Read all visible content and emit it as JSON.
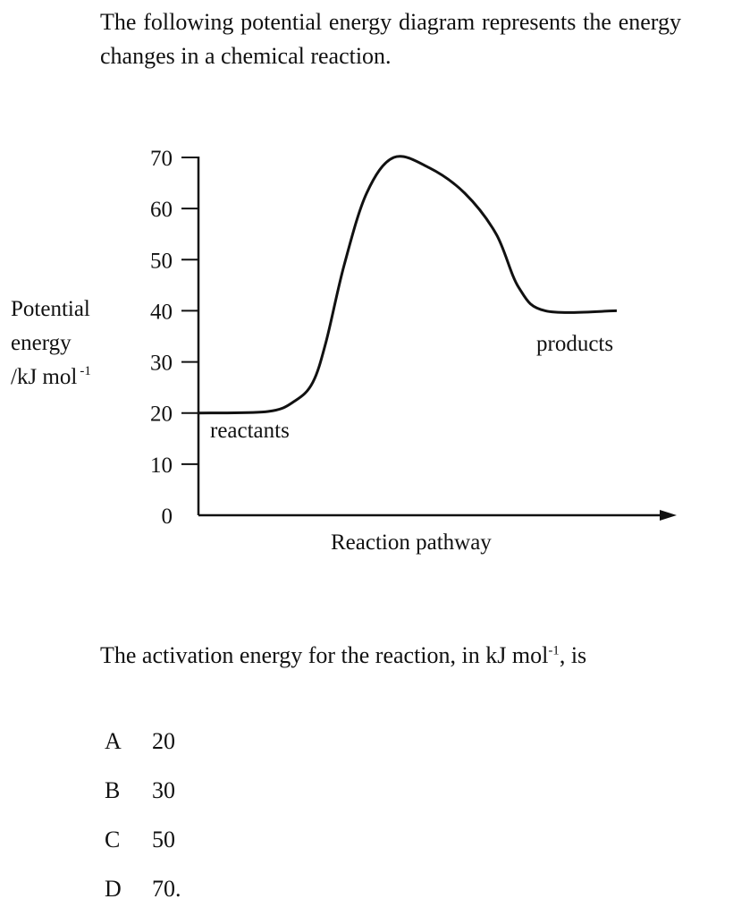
{
  "intro": "The following potential energy diagram represents the energy changes in a chemical reaction.",
  "chart_data": {
    "type": "line",
    "title": "",
    "xlabel": "Reaction pathway",
    "ylabel_lines": [
      "Potential",
      "energy",
      "/kJ mol"
    ],
    "ylabel_sup": "-1",
    "ylim": [
      0,
      70
    ],
    "yticks": [
      0,
      10,
      20,
      30,
      40,
      50,
      60,
      70
    ],
    "grid": false,
    "annotations": {
      "reactants": "reactants",
      "products": "products"
    },
    "reactants_energy": 20,
    "peak_energy": 70,
    "products_energy": 40,
    "series": [
      {
        "x": [
          0,
          14.6,
          20.3,
          24,
          26.8,
          30.6,
          35.3,
          41,
          48.4,
          55.9,
          62.5,
          67.2,
          72.8,
          87.8
        ],
        "y": [
          20,
          20.3,
          22.4,
          26,
          34,
          49,
          63,
          70,
          68,
          63,
          55,
          44.6,
          40,
          40
        ]
      }
    ]
  },
  "question": {
    "text": "The activation energy for the reaction, in kJ mol",
    "sup": "-1",
    "tail": ", is"
  },
  "options": [
    {
      "letter": "A",
      "value": "20"
    },
    {
      "letter": "B",
      "value": "30"
    },
    {
      "letter": "C",
      "value": "50"
    },
    {
      "letter": "D",
      "value": "70."
    }
  ]
}
